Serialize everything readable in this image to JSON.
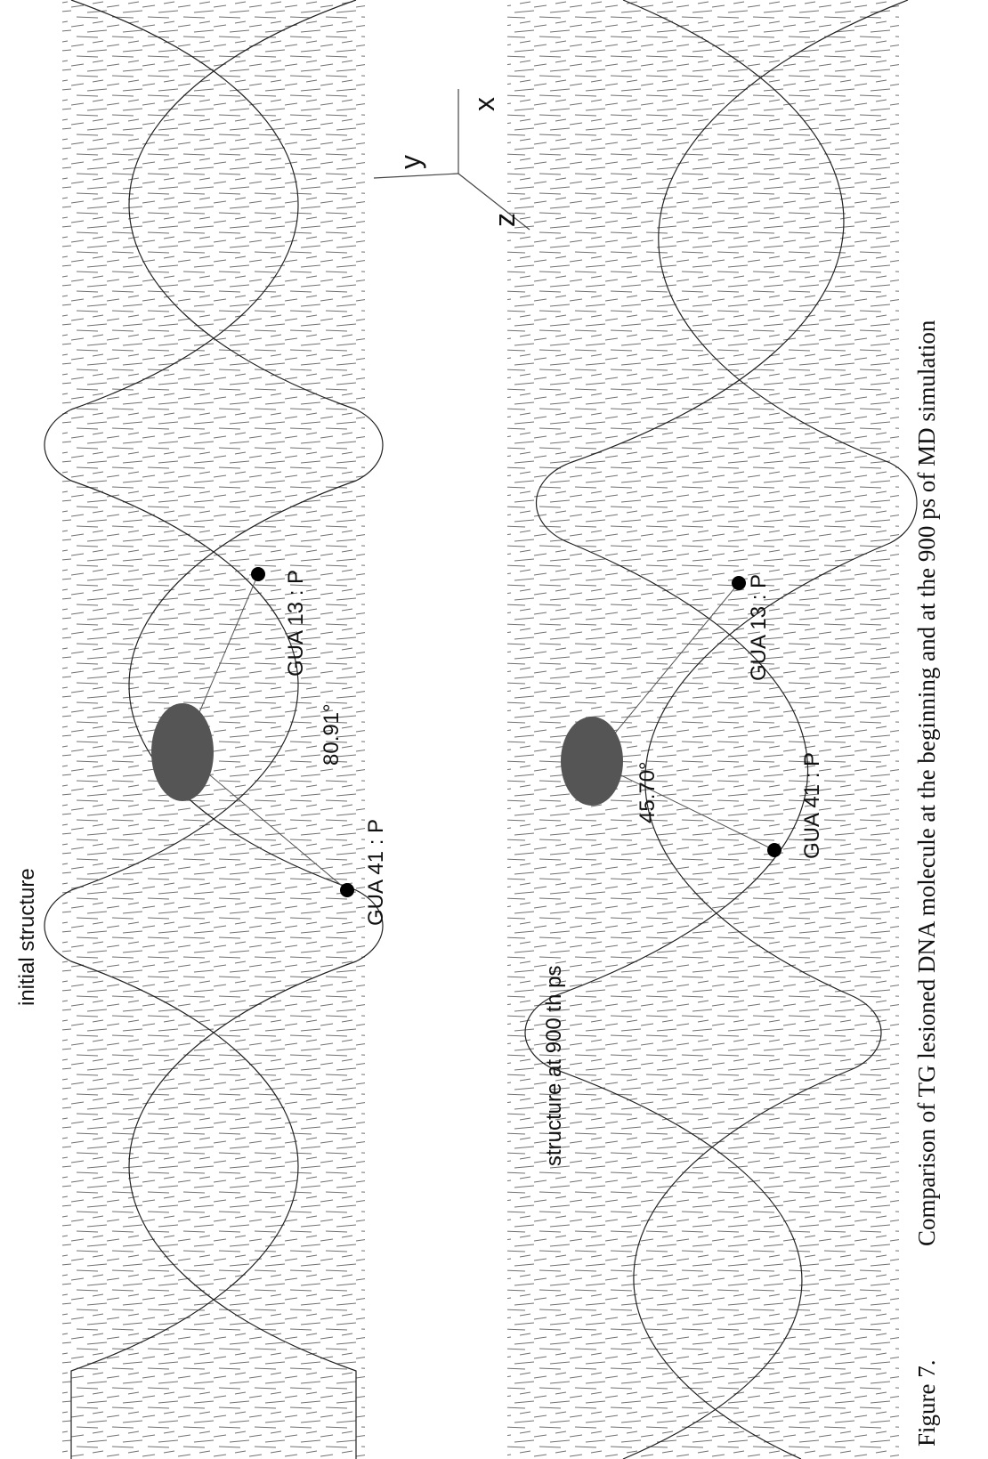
{
  "panels": [
    {
      "label": "initial structure",
      "angle": "80.91°",
      "atoms": [
        "GUA 13 : P",
        "GUA 41 : P"
      ]
    },
    {
      "label": "structure at 900 th ps",
      "angle": "45.70°",
      "atoms": [
        "GUA 13 : P",
        "GUA 41 : P"
      ]
    }
  ],
  "axes": {
    "x": "x",
    "y": "y",
    "z": "z"
  },
  "caption": {
    "label": "Figure 7.",
    "text": "Comparison of TG lesioned DNA molecule at the beginning and at the 900 ps of MD simulation"
  }
}
